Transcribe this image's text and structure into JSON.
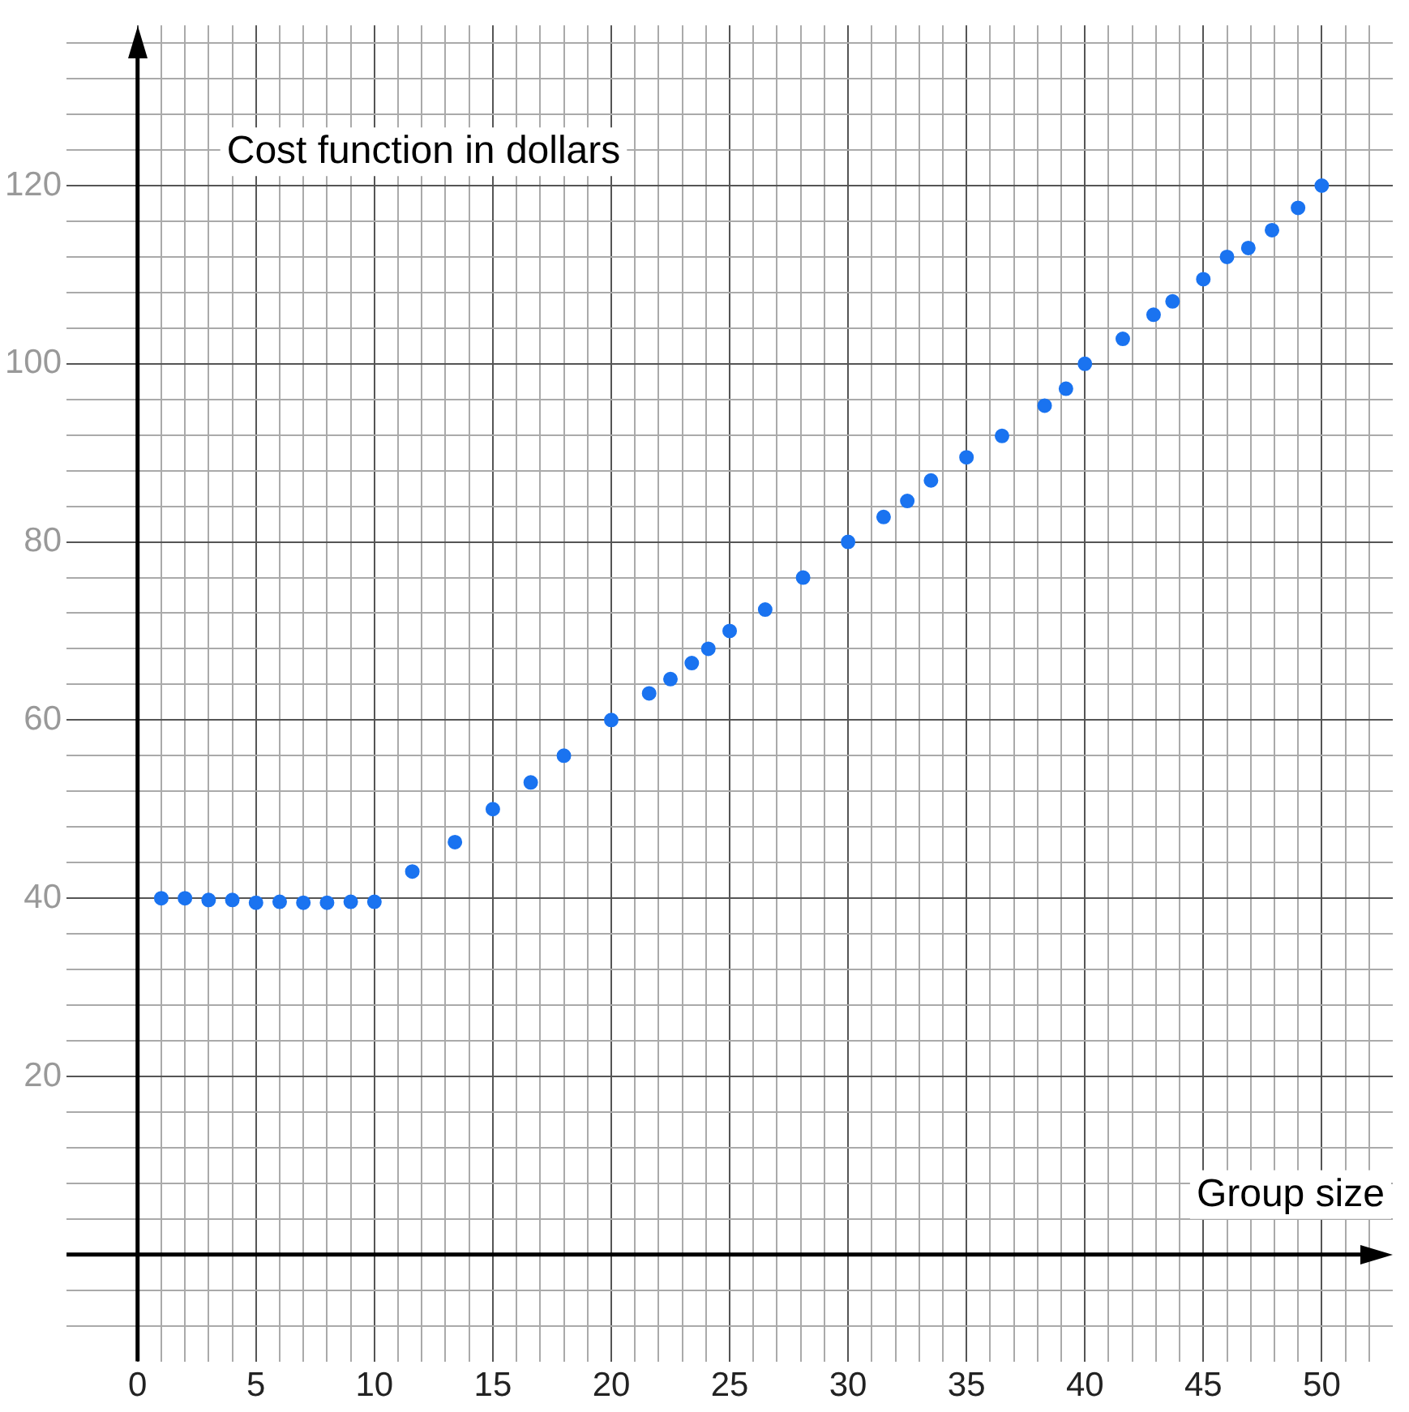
{
  "chart_data": {
    "type": "scatter",
    "xlabel": "Group size",
    "ylabel": "Cost function in dollars",
    "x": [
      1,
      2,
      3,
      4,
      5,
      6,
      7,
      8,
      9,
      10,
      11.6,
      13.4,
      15,
      16.6,
      18,
      20,
      21.6,
      22.5,
      23.4,
      24.1,
      25,
      26.5,
      28.1,
      30,
      31.5,
      32.5,
      33.5,
      35,
      36.5,
      38.3,
      39.2,
      40,
      41.6,
      42.9,
      43.7,
      45,
      46,
      46.9,
      47.9,
      49,
      50
    ],
    "series": [
      {
        "color": "#1a73f0",
        "values": [
          40,
          40,
          39.8,
          39.8,
          39.5,
          39.6,
          39.5,
          39.5,
          39.6,
          39.6,
          43,
          46.3,
          50,
          53,
          56,
          60,
          63,
          64.6,
          66.4,
          68,
          70,
          72.4,
          76,
          80,
          82.8,
          84.6,
          86.9,
          89.5,
          91.9,
          95.3,
          97.2,
          100,
          102.8,
          105.5,
          107,
          109.5,
          112,
          113,
          115,
          117.5,
          120
        ]
      }
    ],
    "marker": "circle",
    "grid": true,
    "xlim": [
      -3,
      53
    ],
    "xticks": [
      0,
      {
        "value": 1,
        "label": null
      },
      {
        "value": 2,
        "label": null
      },
      {
        "value": 3,
        "label": null
      },
      {
        "value": 4,
        "label": null
      },
      5,
      {
        "value": 6,
        "label": null
      },
      {
        "value": 7,
        "label": null
      },
      {
        "value": 8,
        "label": null
      },
      {
        "value": 9,
        "label": null
      },
      10,
      {
        "value": 11,
        "label": null
      },
      {
        "value": 12,
        "label": null
      },
      {
        "value": 13,
        "label": null
      },
      {
        "value": 14,
        "label": null
      },
      15,
      {
        "value": 16,
        "label": null
      },
      {
        "value": 17,
        "label": null
      },
      {
        "value": 18,
        "label": null
      },
      {
        "value": 19,
        "label": null
      },
      20,
      {
        "value": 21,
        "label": null
      },
      {
        "value": 22,
        "label": null
      },
      {
        "value": 23,
        "label": null
      },
      {
        "value": 24,
        "label": null
      },
      25,
      {
        "value": 26,
        "label": null
      },
      {
        "value": 27,
        "label": null
      },
      {
        "value": 28,
        "label": null
      },
      {
        "value": 29,
        "label": null
      },
      30,
      {
        "value": 31,
        "label": null
      },
      {
        "value": 32,
        "label": null
      },
      {
        "value": 33,
        "label": null
      },
      {
        "value": 34,
        "label": null
      },
      35,
      {
        "value": 36,
        "label": null
      },
      {
        "value": 37,
        "label": null
      },
      {
        "value": 38,
        "label": null
      },
      {
        "value": 39,
        "label": null
      },
      40,
      {
        "value": 41,
        "label": null
      },
      {
        "value": 42,
        "label": null
      },
      {
        "value": 43,
        "label": null
      },
      {
        "value": 44,
        "label": null
      },
      45,
      {
        "value": 46,
        "label": null
      },
      {
        "value": 47,
        "label": null
      },
      {
        "value": 48,
        "label": null
      },
      {
        "value": 49,
        "label": null
      },
      50,
      {
        "value": 51,
        "label": null
      },
      {
        "value": 52,
        "label": null
      }
    ],
    "ylim": [
      -12,
      138
    ],
    "yticks": [
      {
        "value": -8,
        "label": null
      },
      {
        "value": -4,
        "label": null
      },
      {
        "value": 4,
        "label": null
      },
      {
        "value": 8,
        "label": null
      },
      {
        "value": 12,
        "label": null
      },
      {
        "value": 16,
        "label": null
      },
      20,
      {
        "value": 24,
        "label": null
      },
      {
        "value": 28,
        "label": null
      },
      {
        "value": 32,
        "label": null
      },
      {
        "value": 36,
        "label": null
      },
      40,
      {
        "value": 44,
        "label": null
      },
      {
        "value": 48,
        "label": null
      },
      {
        "value": 52,
        "label": null
      },
      {
        "value": 56,
        "label": null
      },
      60,
      {
        "value": 64,
        "label": null
      },
      {
        "value": 68,
        "label": null
      },
      {
        "value": 72,
        "label": null
      },
      {
        "value": 76,
        "label": null
      },
      80,
      {
        "value": 84,
        "label": null
      },
      {
        "value": 88,
        "label": null
      },
      {
        "value": 92,
        "label": null
      },
      {
        "value": 96,
        "label": null
      },
      100,
      {
        "value": 104,
        "label": null
      },
      {
        "value": 108,
        "label": null
      },
      {
        "value": 112,
        "label": null
      },
      {
        "value": 116,
        "label": null
      },
      120,
      {
        "value": 124,
        "label": null
      },
      {
        "value": 128,
        "label": null
      },
      {
        "value": 132,
        "label": null
      },
      {
        "value": 136,
        "label": null
      }
    ]
  }
}
